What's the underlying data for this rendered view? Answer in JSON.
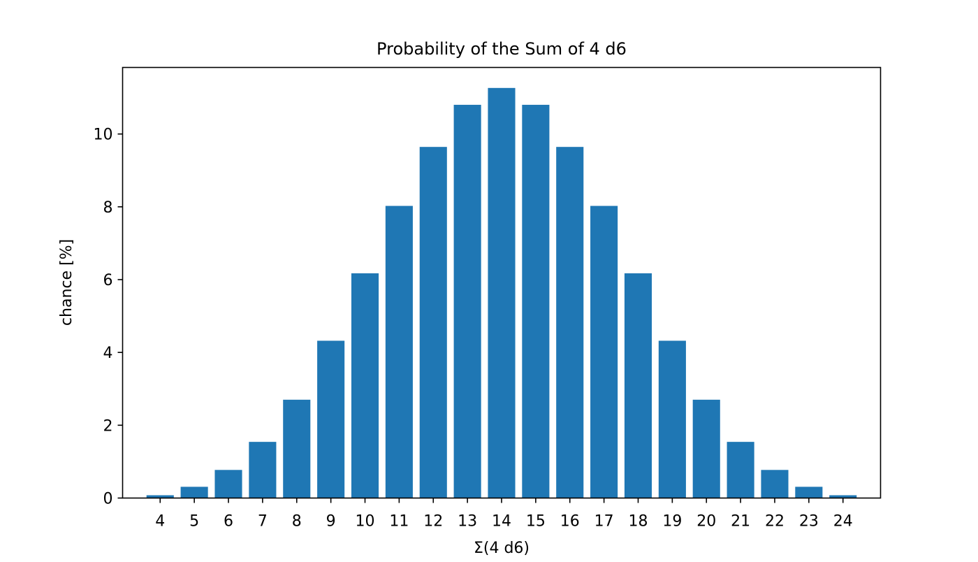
{
  "chart_data": {
    "type": "bar",
    "title": "Probability of the Sum of 4 d6",
    "xlabel": "Σ(4 d6)",
    "ylabel": "chance [%]",
    "categories": [
      "4",
      "5",
      "6",
      "7",
      "8",
      "9",
      "10",
      "11",
      "12",
      "13",
      "14",
      "15",
      "16",
      "17",
      "18",
      "19",
      "20",
      "21",
      "22",
      "23",
      "24"
    ],
    "values": [
      0.077,
      0.309,
      0.772,
      1.543,
      2.701,
      4.321,
      6.173,
      8.025,
      9.645,
      10.802,
      11.265,
      10.802,
      9.645,
      8.025,
      6.173,
      4.321,
      2.701,
      1.543,
      0.772,
      0.309,
      0.077
    ],
    "xlim": [
      2.9,
      25.1
    ],
    "ylim": [
      0,
      11.828
    ],
    "yticks": [
      0,
      2,
      4,
      6,
      8,
      10
    ],
    "ytick_labels": [
      "0",
      "2",
      "4",
      "6",
      "8",
      "10"
    ],
    "bar_color": "#1f77b4",
    "grid": false,
    "legend": "none"
  }
}
